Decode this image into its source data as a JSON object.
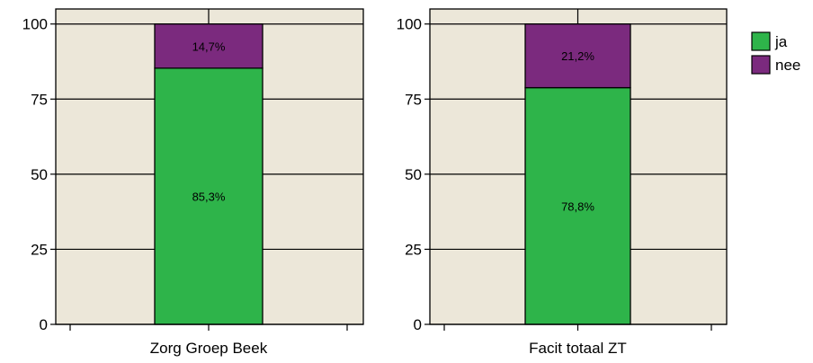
{
  "chart_data": [
    {
      "type": "bar",
      "stacked": true,
      "categories": [
        "Zorg Groep Beek"
      ],
      "series": [
        {
          "name": "ja",
          "values": [
            85.3
          ],
          "label": "85,3%"
        },
        {
          "name": "nee",
          "values": [
            14.7
          ],
          "label": "14,7%"
        }
      ],
      "ylim": [
        0,
        105
      ],
      "yticks": [
        "0",
        "25",
        "50",
        "75",
        "100"
      ],
      "grid": true
    },
    {
      "type": "bar",
      "stacked": true,
      "categories": [
        "Facit totaal ZT"
      ],
      "series": [
        {
          "name": "ja",
          "values": [
            78.8
          ],
          "label": "78,8%"
        },
        {
          "name": "nee",
          "values": [
            21.2
          ],
          "label": "21,2%"
        }
      ],
      "ylim": [
        0,
        105
      ],
      "yticks": [
        "0",
        "25",
        "50",
        "75",
        "100"
      ],
      "grid": true
    }
  ],
  "legend": {
    "placement": "top-right",
    "items": [
      {
        "name": "ja",
        "color": "#2eb44a"
      },
      {
        "name": "nee",
        "color": "#7b2a7e"
      }
    ]
  },
  "colors": {
    "plot_background": "#ece7d9",
    "ja": "#2eb44a",
    "nee": "#7b2a7e"
  }
}
